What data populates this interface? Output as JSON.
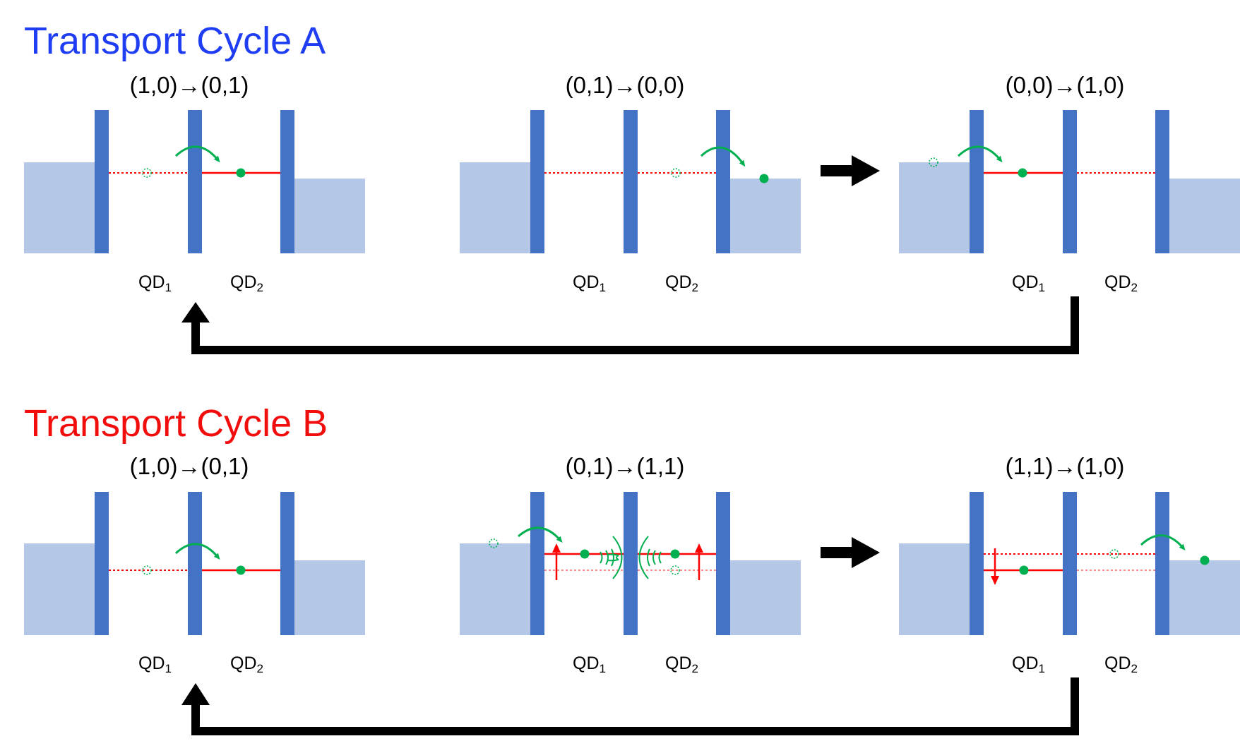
{
  "cycle_a": {
    "title": "Transport Cycle A",
    "color": "#1f3df2",
    "transitions": [
      "(1,0)→(0,1)",
      "(0,1)→(0,0)",
      "(0,0)→(1,0)"
    ]
  },
  "cycle_b": {
    "title": "Transport Cycle B",
    "color": "#f20d0d",
    "transitions": [
      "(1,0)→(0,1)",
      "(0,1)→(1,1)",
      "(1,1)→(1,0)"
    ]
  },
  "qd_labels": {
    "qd1": "QD",
    "qd1_sub": "1",
    "qd2": "QD",
    "qd2_sub": "2"
  },
  "colors": {
    "barrier": "#4472c4",
    "reservoir": "#b4c7e7",
    "level": "#ff0000",
    "electron": "#00b050",
    "arrow": "#000000"
  },
  "icons": {
    "tunnel_arrow": "curved-arrow-icon",
    "cycle_arrow": "right-arrow-icon",
    "return_arrow": "return-arrow-icon",
    "photon": "photon-emission-icon"
  }
}
